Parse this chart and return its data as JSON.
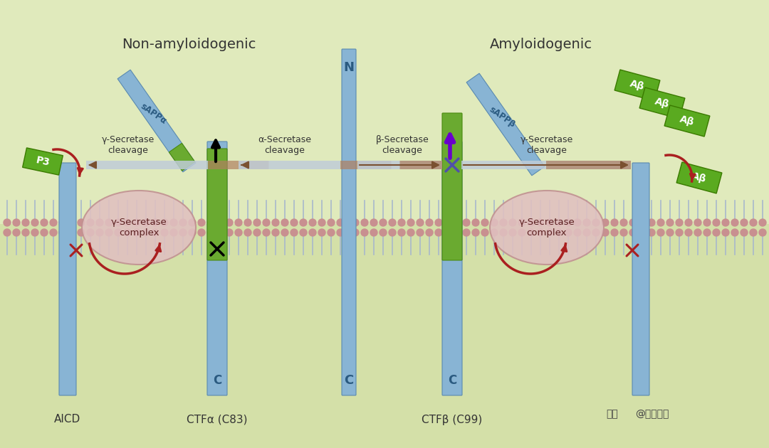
{
  "bg_color_top": "#e8eecc",
  "bg_color_bottom": "#c8d8a0",
  "membrane_fill": "#b8ccdc",
  "membrane_head": "#c89090",
  "membrane_tail": "#a8b8cc",
  "green_seg": "#6aaa30",
  "green_seg_edge": "#4a8a10",
  "blue_col": "#88b4d4",
  "blue_col_edge": "#5a8ab0",
  "secretase_fill": "#e0c0c0",
  "secretase_edge": "#c09090",
  "arrow_brown_dark": "#8b4513",
  "arrow_body_light": "#a8bcc8",
  "arrow_body_brown": "#a07050",
  "green_box": "#5aaa20",
  "green_box_edge": "#3a7a00",
  "red_arrow": "#aa2020",
  "purple_arrow": "#6a00cc",
  "black": "#111111",
  "text_dark": "#333333",
  "title_left": "Non-amyloidogenic",
  "title_right": "Amyloidogenic",
  "label_aicd": "AICD",
  "label_ctfa": "CTFα (C83)",
  "label_ctfb": "CTFβ (C99)",
  "label_sappa": "sAPPα",
  "label_sappb": "sAPPβ",
  "label_gamma_left": "γ-Secretase\ncleavage",
  "label_alpha": "α-Secretase\ncleavage",
  "label_beta": "β-Secretase\ncleavage",
  "label_gamma_right": "γ-Secretase\ncleavage",
  "label_p3": "P3",
  "label_ab": "Aβ",
  "label_complex": "γ-Secretase\ncomplex",
  "wm1": "头条",
  "wm2": "@医学顾事"
}
